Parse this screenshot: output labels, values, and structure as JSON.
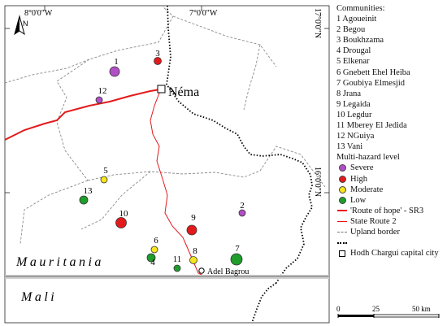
{
  "map": {
    "lat_labels": [
      "17°0'0\"N",
      "16°0'0\"N"
    ],
    "lon_labels": [
      "8°0'0\"W",
      "7°0'0\"W"
    ],
    "north_label": "N",
    "capital_label": "Néma",
    "other_town_label": "Adel Bagrou",
    "country_labels": [
      "Mauritania",
      "Mali"
    ],
    "community_markers": [
      {
        "id": "1",
        "level": "Severe"
      },
      {
        "id": "2",
        "level": "Severe"
      },
      {
        "id": "3",
        "level": "High"
      },
      {
        "id": "4",
        "level": "Low"
      },
      {
        "id": "5",
        "level": "Moderate"
      },
      {
        "id": "6",
        "level": "Moderate"
      },
      {
        "id": "7",
        "level": "Low"
      },
      {
        "id": "8",
        "level": "Moderate"
      },
      {
        "id": "9",
        "level": "High"
      },
      {
        "id": "10",
        "level": "High"
      },
      {
        "id": "11",
        "level": "Low"
      },
      {
        "id": "12",
        "level": "Severe"
      },
      {
        "id": "13",
        "level": "Low"
      }
    ],
    "colors": {
      "Severe": "#b14fc5",
      "High": "#e31a1c",
      "Moderate": "#f5e51b",
      "Low": "#1f9e2c",
      "route_of_hope": "#e31a1c",
      "state_route": "#e31a1c",
      "upland_border": "#8a8a8a",
      "country_border": "#000000"
    }
  },
  "legend": {
    "communities_heading": "Communities:",
    "communities": [
      "1 Agoueinit",
      "2 Begou",
      "3 Boukhzama",
      "4 Drougal",
      "5 Elkenar",
      "6 Gnebett Ehel Heiba",
      "7 Goubiya Elmesjid",
      "8 Jrana",
      "9 Legaida",
      "10 Legdur",
      "11 Mberey El Jedida",
      "12 NGuiya",
      "13 Vani"
    ],
    "hazard_heading": "Multi-hazard level",
    "hazard_levels": [
      "Severe",
      "High",
      "Moderate",
      "Low"
    ],
    "lines": [
      "'Route of hope' - SR3",
      "State Route 2",
      "Upland border"
    ],
    "capital": "Hodh Chargui capital city"
  },
  "scale_bar": {
    "labels": [
      "0",
      "25",
      "50 km"
    ]
  }
}
